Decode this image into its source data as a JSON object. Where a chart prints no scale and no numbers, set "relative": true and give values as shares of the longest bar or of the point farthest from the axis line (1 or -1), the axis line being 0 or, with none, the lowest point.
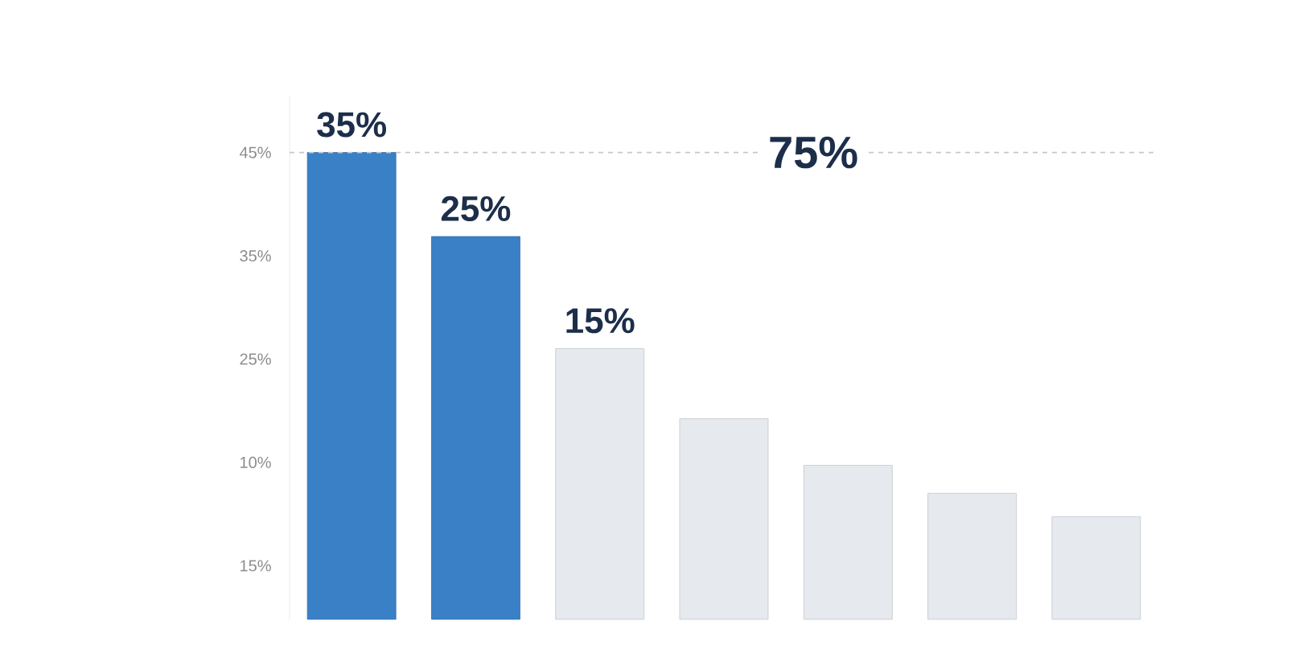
{
  "chart_data": {
    "type": "bar",
    "relative": true,
    "categories": [
      null,
      null,
      null,
      null,
      null,
      null,
      null
    ],
    "values": [
      1,
      0.82,
      0.58,
      0.43,
      0.33,
      0.27,
      0.22
    ],
    "colors": [
      "#3a80c6",
      "#3a80c6",
      "#e6e9ee",
      "#e6e9ee",
      "#e6e9ee",
      "#e6e9ee",
      "#e6e9ee"
    ],
    "annotations": [
      "45%",
      "35%",
      "25%",
      "10%",
      "15%",
      "35%",
      "25%",
      "15%",
      "75%"
    ],
    "ref_lines": [
      {
        "axis": "y",
        "value": 1,
        "color": "#c4c9cf",
        "line_style": "dashed"
      }
    ]
  }
}
